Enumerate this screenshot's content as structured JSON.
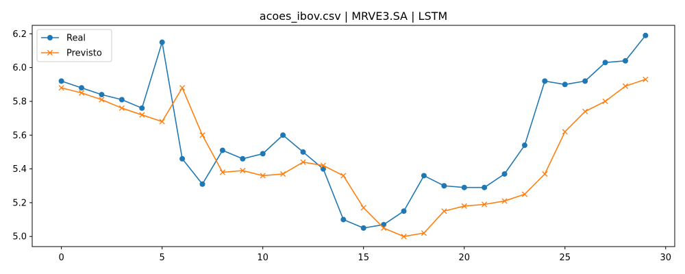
{
  "chart_data": {
    "type": "line",
    "title": "acoes_ibov.csv | MRVE3.SA | LSTM",
    "xlabel": "",
    "ylabel": "",
    "xlim": [
      -1.45,
      30.45
    ],
    "ylim": [
      4.94,
      6.25
    ],
    "x_ticks": [
      0,
      5,
      10,
      15,
      20,
      25,
      30
    ],
    "y_ticks": [
      5.0,
      5.2,
      5.4,
      5.6,
      5.8,
      6.0,
      6.2
    ],
    "x_tick_labels": [
      "0",
      "5",
      "10",
      "15",
      "20",
      "25",
      "30"
    ],
    "y_tick_labels": [
      "5.0",
      "5.2",
      "5.4",
      "5.6",
      "5.8",
      "6.0",
      "6.2"
    ],
    "grid": false,
    "legend_position": "top-left",
    "x": [
      0,
      1,
      2,
      3,
      4,
      5,
      6,
      7,
      8,
      9,
      10,
      11,
      12,
      13,
      14,
      15,
      16,
      17,
      18,
      19,
      20,
      21,
      22,
      23,
      24,
      25,
      26,
      27,
      28,
      29
    ],
    "series": [
      {
        "name": "Real",
        "color": "#1f77b4",
        "marker": "circle",
        "values": [
          5.92,
          5.88,
          5.84,
          5.81,
          5.76,
          6.15,
          5.46,
          5.31,
          5.51,
          5.46,
          5.49,
          5.6,
          5.5,
          5.4,
          5.1,
          5.05,
          5.07,
          5.15,
          5.36,
          5.3,
          5.29,
          5.29,
          5.37,
          5.54,
          5.92,
          5.9,
          5.92,
          6.03,
          6.04,
          6.19
        ]
      },
      {
        "name": "Previsto",
        "color": "#ff7f0e",
        "marker": "x",
        "values": [
          5.88,
          5.85,
          5.81,
          5.76,
          5.72,
          5.68,
          5.88,
          5.6,
          5.38,
          5.39,
          5.36,
          5.37,
          5.44,
          5.42,
          5.36,
          5.17,
          5.05,
          5.0,
          5.02,
          5.15,
          5.18,
          5.19,
          5.21,
          5.25,
          5.37,
          5.62,
          5.74,
          5.8,
          5.89,
          5.93
        ]
      }
    ]
  }
}
